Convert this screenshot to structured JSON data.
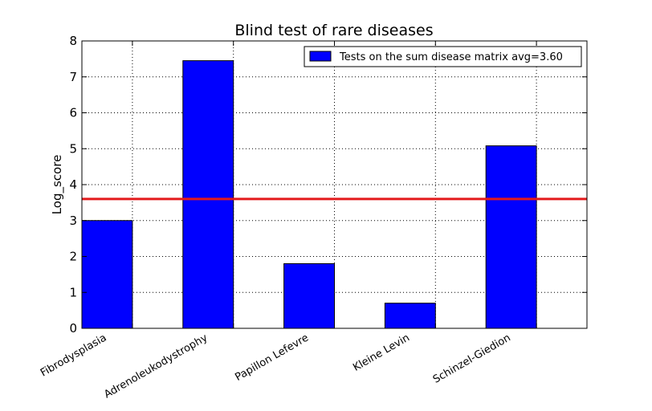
{
  "chart_data": {
    "type": "bar",
    "title": "Blind test of rare diseases",
    "xlabel": "",
    "ylabel": "Log_score",
    "ylim": [
      0,
      8
    ],
    "yticks": [
      "0",
      "1",
      "2",
      "3",
      "4",
      "5",
      "6",
      "7",
      "8"
    ],
    "categories": [
      "Fibrodysplasia",
      "Adrenoleukodystrophy",
      "Papillon Lefevre",
      "Kleine Levin",
      "Schinzel-Giedion"
    ],
    "series": [
      {
        "name": "Tests on the sum disease matrix avg=3.60",
        "values": [
          3.0,
          7.45,
          1.8,
          0.7,
          5.08
        ],
        "color": "#0000ff"
      }
    ],
    "average": {
      "value": 3.6,
      "color": "#e31a1c"
    },
    "grid": true,
    "legend_position": "top-right"
  }
}
